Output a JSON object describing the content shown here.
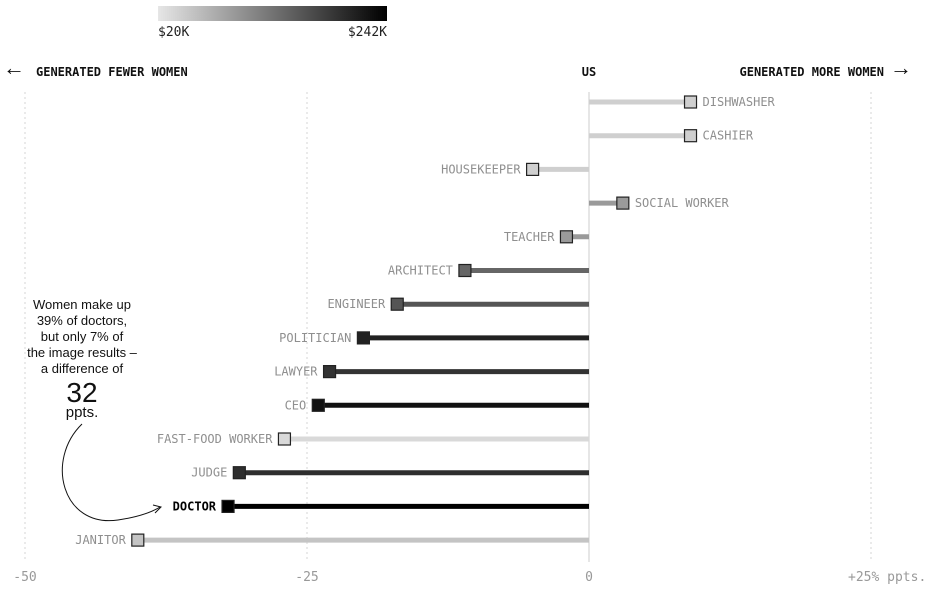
{
  "legend": {
    "min_label": "$20K",
    "max_label": "$242K",
    "min_color": "#e6e6e6",
    "max_color": "#000000"
  },
  "header": {
    "left_label": "GENERATED FEWER WOMEN",
    "center_label": "US",
    "right_label": "GENERATED MORE WOMEN",
    "left_arrow": "←",
    "right_arrow": "→"
  },
  "annotation": {
    "line1": "Women make up",
    "line2": "39% of doctors,",
    "line3": "but only 7% of",
    "line4": "the image results –",
    "line5": "a difference of",
    "big_number": "32",
    "unit": "ppts."
  },
  "chart_data": {
    "type": "dot-bar",
    "title": "",
    "xlabel": "",
    "ylabel": "",
    "xlim": [
      -50,
      30
    ],
    "grid": true,
    "x_ticks": [
      {
        "value": -50,
        "label": "-50"
      },
      {
        "value": -25,
        "label": "-25"
      },
      {
        "value": 0,
        "label": "0"
      },
      {
        "value": 25,
        "label": "+25% ppts."
      }
    ],
    "categories": [
      "DISHWASHER",
      "CASHIER",
      "HOUSEKEEPER",
      "SOCIAL WORKER",
      "TEACHER",
      "ARCHITECT",
      "ENGINEER",
      "POLITICIAN",
      "LAWYER",
      "CEO",
      "FAST-FOOD WORKER",
      "JUDGE",
      "DOCTOR",
      "JANITOR"
    ],
    "values": [
      9,
      9,
      -5,
      3,
      -2,
      -11,
      -17,
      -20,
      -23,
      -24,
      -27,
      -31,
      -32,
      -40
    ],
    "colors": [
      "#cfcfcf",
      "#cfcfcf",
      "#cfcfcf",
      "#9a9a9a",
      "#9a9a9a",
      "#666666",
      "#555555",
      "#222222",
      "#333333",
      "#111111",
      "#d9d9d9",
      "#2e2e2e",
      "#000000",
      "#c4c4c4"
    ],
    "highlight": "DOCTOR"
  }
}
